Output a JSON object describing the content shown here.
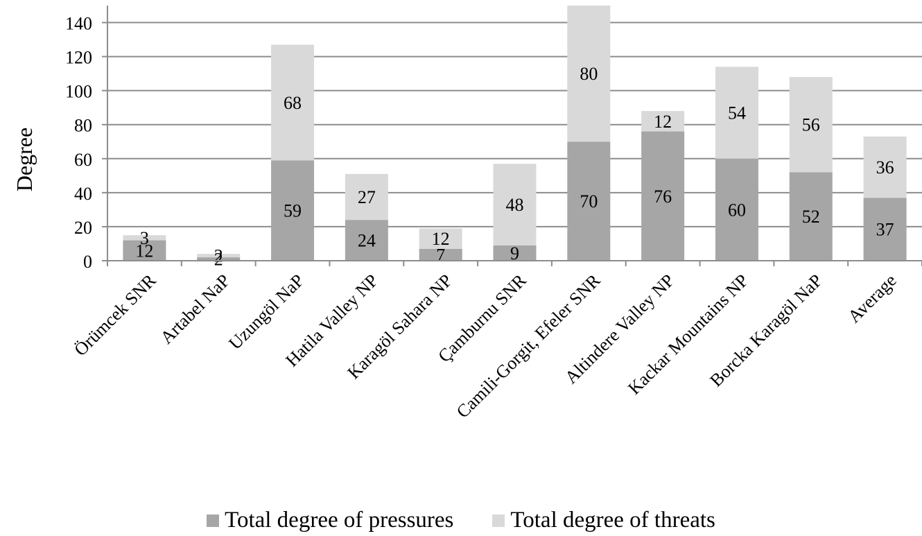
{
  "chart_data": {
    "type": "bar",
    "stacked": true,
    "title": "",
    "xlabel": "",
    "ylabel": "Degree",
    "ylim": [
      0,
      150
    ],
    "yticks": [
      0,
      20,
      40,
      60,
      80,
      100,
      120,
      140
    ],
    "grid": true,
    "legend_position": "bottom",
    "categories": [
      "Örümcek SNR",
      "Artabel NaP",
      "Uzungöl NaP",
      "Hatila Valley NP",
      "Karagöl Sahara NP",
      "Çamburnu SNR",
      "Camili-Gorgit, Efeler SNR",
      "Altindere Valley NP",
      "Kackar Mountains NP",
      "Borcka Karagöl NaP",
      "Average"
    ],
    "series": [
      {
        "name": "Total degree of pressures",
        "color": "#a6a6a6",
        "values": [
          12,
          2,
          59,
          24,
          7,
          9,
          70,
          76,
          60,
          52,
          37
        ]
      },
      {
        "name": "Total degree of threats",
        "color": "#d9d9d9",
        "values": [
          3,
          2,
          68,
          27,
          12,
          48,
          80,
          12,
          54,
          56,
          36
        ]
      }
    ]
  }
}
